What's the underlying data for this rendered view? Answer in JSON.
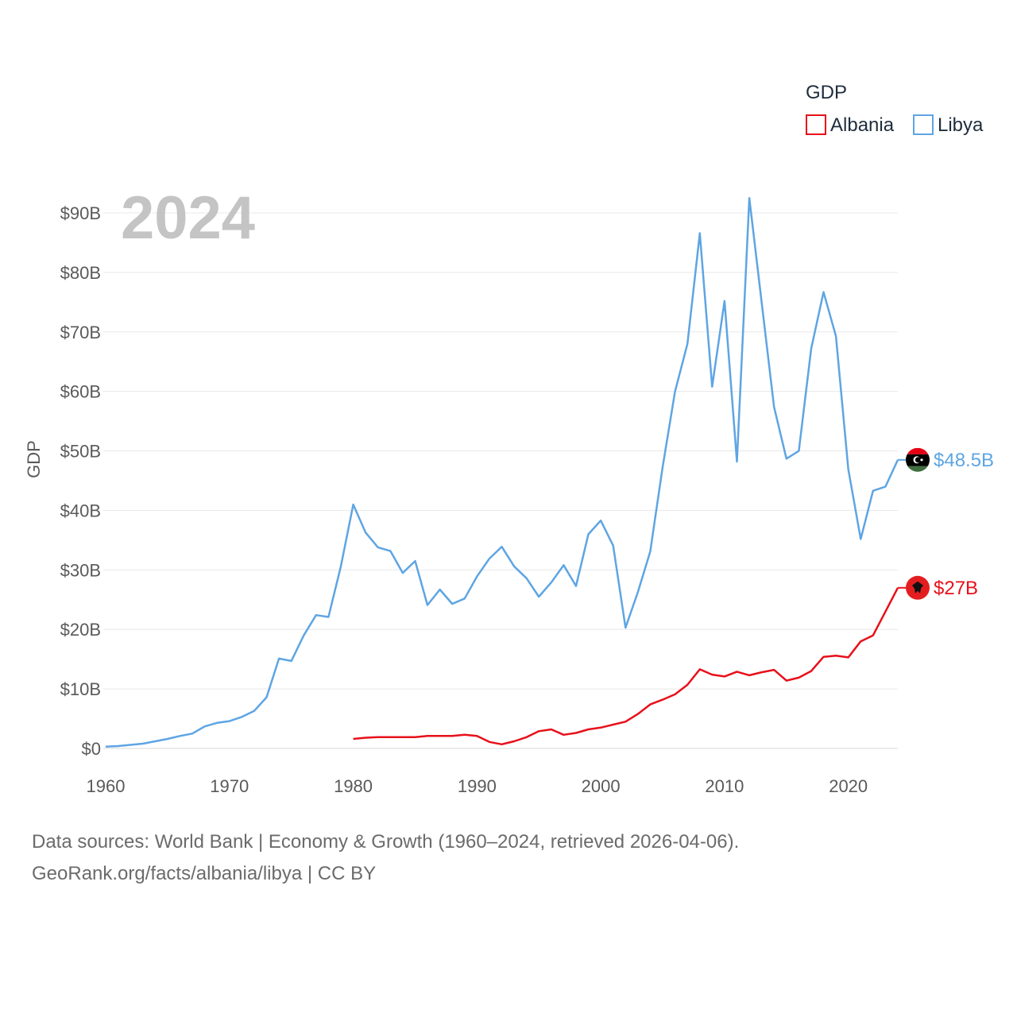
{
  "legend": {
    "title": "GDP"
  },
  "year_label": "2024",
  "footer": {
    "line1": "Data sources: World Bank | Economy & Growth (1960–2024, retrieved 2026-04-06).",
    "line2": "GeoRank.org/facts/albania/libya | CC BY"
  },
  "chart_data": {
    "type": "line",
    "title": "GDP",
    "xlabel": "",
    "ylabel": "GDP",
    "x_ticks": [
      "1960",
      "1970",
      "1980",
      "1990",
      "2000",
      "2010",
      "2020"
    ],
    "y_ticks": [
      "$0",
      "$10B",
      "$20B",
      "$30B",
      "$40B",
      "$50B",
      "$60B",
      "$70B",
      "$80B",
      "$90B"
    ],
    "xlim": [
      1960,
      2024
    ],
    "ylim": [
      0,
      90
    ],
    "y_unit": "billion USD",
    "grid": true,
    "series": [
      {
        "name": "Albania",
        "color": "#e8101a",
        "end_label": "$27B",
        "flag": "albania-flag",
        "x": [
          1980,
          1981,
          1982,
          1983,
          1984,
          1985,
          1986,
          1987,
          1988,
          1989,
          1990,
          1991,
          1992,
          1993,
          1994,
          1995,
          1996,
          1997,
          1998,
          1999,
          2000,
          2001,
          2002,
          2003,
          2004,
          2005,
          2006,
          2007,
          2008,
          2009,
          2010,
          2011,
          2012,
          2013,
          2014,
          2015,
          2016,
          2017,
          2018,
          2019,
          2020,
          2021,
          2022,
          2023,
          2024
        ],
        "values": [
          1.6,
          1.8,
          1.9,
          1.9,
          1.9,
          1.9,
          2.1,
          2.1,
          2.1,
          2.3,
          2.1,
          1.1,
          0.7,
          1.2,
          1.9,
          2.9,
          3.2,
          2.3,
          2.6,
          3.2,
          3.5,
          4.0,
          4.5,
          5.8,
          7.4,
          8.2,
          9.1,
          10.7,
          13.3,
          12.4,
          12.1,
          12.9,
          12.3,
          12.8,
          13.2,
          11.4,
          11.9,
          13.0,
          15.4,
          15.6,
          15.3,
          18.0,
          19.0,
          23.0,
          27.0
        ]
      },
      {
        "name": "Libya",
        "color": "#5ea5e3",
        "end_label": "$48.5B",
        "flag": "libya-flag",
        "x": [
          1960,
          1961,
          1962,
          1963,
          1964,
          1965,
          1966,
          1967,
          1968,
          1969,
          1970,
          1971,
          1972,
          1973,
          1974,
          1975,
          1976,
          1977,
          1978,
          1979,
          1980,
          1981,
          1982,
          1983,
          1984,
          1985,
          1986,
          1987,
          1988,
          1989,
          1990,
          1991,
          1992,
          1993,
          1994,
          1995,
          1996,
          1997,
          1998,
          1999,
          2000,
          2001,
          2002,
          2003,
          2004,
          2005,
          2006,
          2007,
          2008,
          2009,
          2010,
          2011,
          2012,
          2013,
          2014,
          2015,
          2016,
          2017,
          2018,
          2019,
          2020,
          2021,
          2022,
          2023,
          2024
        ],
        "values": [
          0.3,
          0.4,
          0.6,
          0.8,
          1.2,
          1.6,
          2.1,
          2.5,
          3.7,
          4.3,
          4.6,
          5.3,
          6.3,
          8.6,
          15.1,
          14.7,
          19.0,
          22.4,
          22.1,
          30.6,
          41.0,
          36.3,
          33.8,
          33.2,
          29.5,
          31.5,
          24.1,
          26.7,
          24.3,
          25.2,
          28.9,
          31.9,
          33.9,
          30.6,
          28.6,
          25.5,
          27.9,
          30.8,
          27.3,
          36.0,
          38.3,
          34.1,
          20.3,
          26.3,
          33.1,
          47.3,
          60.0,
          68.0,
          86.6,
          60.8,
          75.2,
          48.2,
          92.5,
          75.0,
          57.4,
          48.7,
          50.0,
          67.2,
          76.7,
          69.3,
          46.9,
          35.2,
          43.3,
          44.0,
          48.5
        ]
      }
    ]
  }
}
